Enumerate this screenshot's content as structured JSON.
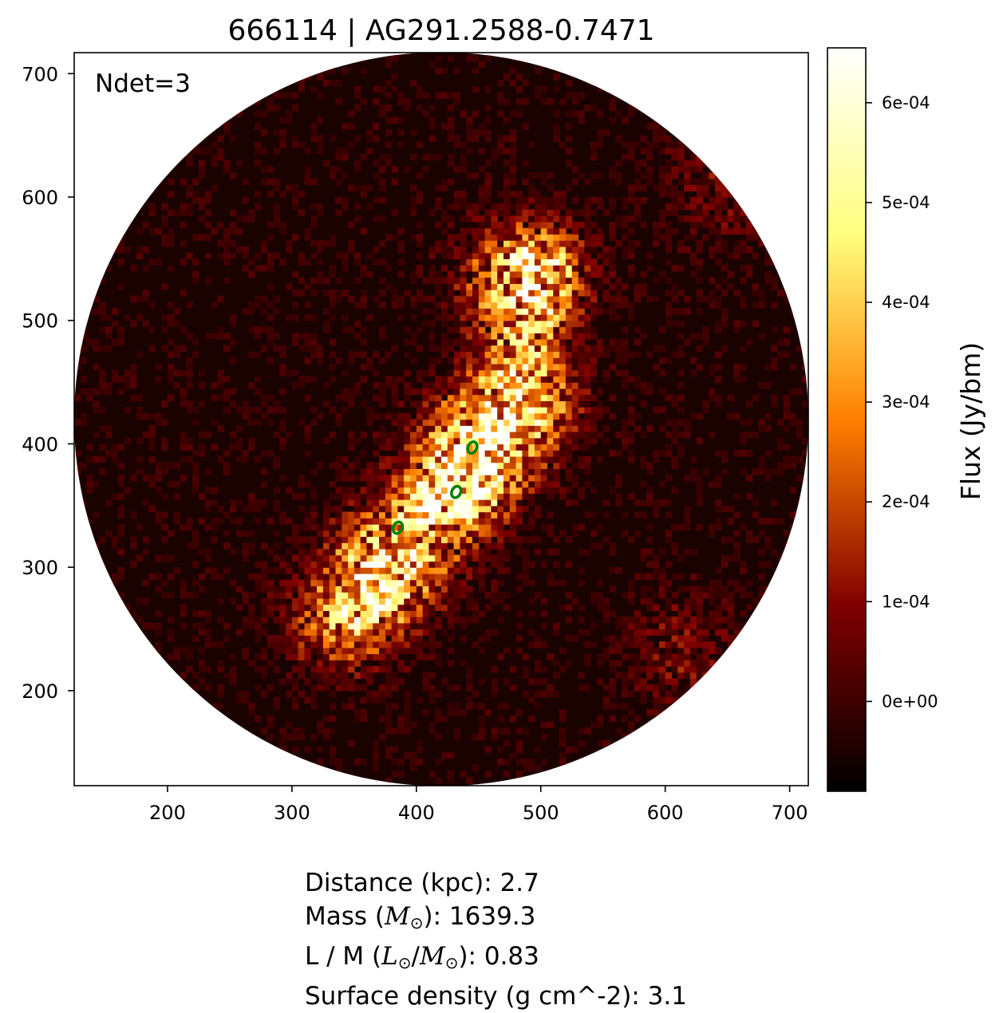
{
  "chart_data": {
    "type": "heatmap",
    "title": "666114 | AG291.2588-0.7471",
    "annotation": "Ndet=3",
    "xlim": [
      125,
      715
    ],
    "ylim": [
      123,
      717
    ],
    "x_ticks": [
      200,
      300,
      400,
      500,
      600,
      700
    ],
    "y_ticks": [
      200,
      300,
      400,
      500,
      600,
      700
    ],
    "field_of_view": {
      "shape": "circle",
      "center": [
        420,
        420
      ],
      "radius": 295
    },
    "colormap": "afmhot",
    "colorbar": {
      "label": "Flux (Jy/bm)",
      "range": [
        -9e-05,
        0.000655
      ],
      "ticks": [
        {
          "value": 0.0,
          "label": "0e+00"
        },
        {
          "value": 0.0001,
          "label": "1e-04"
        },
        {
          "value": 0.0002,
          "label": "2e-04"
        },
        {
          "value": 0.0003,
          "label": "3e-04"
        },
        {
          "value": 0.0004,
          "label": "4e-04"
        },
        {
          "value": 0.0005,
          "label": "5e-04"
        },
        {
          "value": 0.0006,
          "label": "6e-04"
        }
      ]
    },
    "detections": [
      {
        "x": 445,
        "y": 397
      },
      {
        "x": 432,
        "y": 361
      },
      {
        "x": 385,
        "y": 332
      }
    ],
    "detection_color": "#008000"
  },
  "info": {
    "distance_label": "Distance (kpc):",
    "distance_value": "2.7",
    "mass_label_pre": "Mass (",
    "mass_symbol": "M",
    "mass_label_post": "):",
    "mass_value": "1639.3",
    "lm_label_pre": "L / M (",
    "lm_symbol_l": "L",
    "lm_sep": "/",
    "lm_symbol_m": "M",
    "lm_label_post": "):",
    "lm_value": "0.83",
    "surface_label": "Surface density (g cm^-2):",
    "surface_value": "3.1",
    "sun_symbol": "⊙"
  }
}
